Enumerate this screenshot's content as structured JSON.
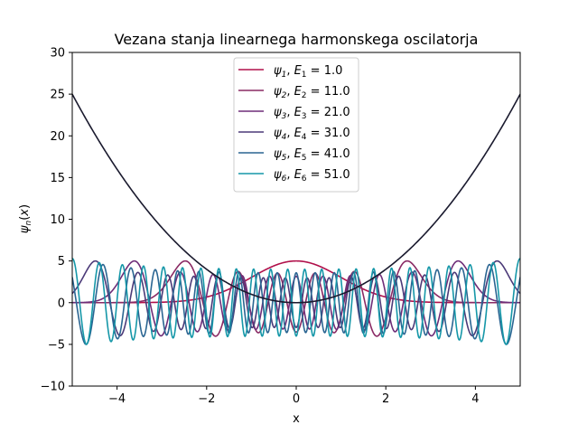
{
  "chart_data": {
    "type": "line",
    "title": "Vezana stanja linearnega harmonskega oscilatorja",
    "xlabel": "x",
    "ylabel": "ψn(x)",
    "xlim": [
      -5,
      5
    ],
    "ylim": [
      -10,
      30
    ],
    "xticks": [
      -4,
      -2,
      0,
      2,
      4
    ],
    "yticks": [
      -10,
      -5,
      0,
      5,
      10,
      15,
      20,
      25,
      30
    ],
    "legend_position": "top-center",
    "grid": false,
    "potential": {
      "expression": "x^2",
      "color": "#1a1a2e",
      "x": [
        -5,
        -4,
        -3,
        -2,
        -1,
        0,
        1,
        2,
        3,
        4,
        5
      ],
      "y": [
        25,
        16,
        9,
        4,
        1,
        0,
        1,
        4,
        9,
        16,
        25
      ]
    },
    "series": [
      {
        "n": 1,
        "E": "1.0",
        "color": "#b0104a",
        "offset": 0,
        "amplitude": 5
      },
      {
        "n": 2,
        "E": "11.0",
        "color": "#8a2a64",
        "offset": 0,
        "amplitude": 5
      },
      {
        "n": 3,
        "E": "21.0",
        "color": "#6e2d78",
        "offset": 0,
        "amplitude": 5
      },
      {
        "n": 4,
        "E": "31.0",
        "color": "#4b3a78",
        "offset": 0,
        "amplitude": 5
      },
      {
        "n": 5,
        "E": "41.0",
        "color": "#2a6592",
        "offset": 0,
        "amplitude": 5
      },
      {
        "n": 6,
        "E": "51.0",
        "color": "#1597a8",
        "offset": 0,
        "amplitude": 5
      }
    ]
  }
}
